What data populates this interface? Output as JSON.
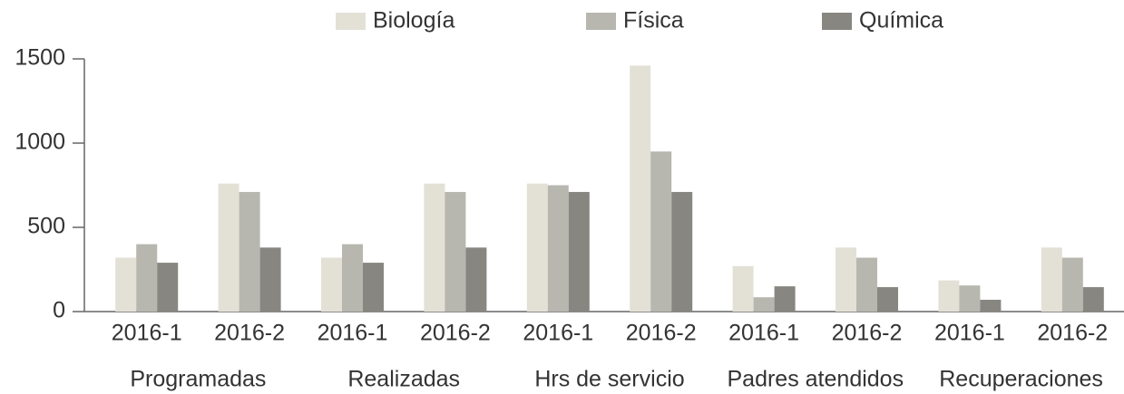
{
  "chart_data": {
    "type": "bar",
    "categories": [
      "2016-1",
      "2016-2",
      "2016-1",
      "2016-2",
      "2016-1",
      "2016-2",
      "2016-1",
      "2016-2",
      "2016-1",
      "2016-2"
    ],
    "groups": [
      "Programadas",
      "Realizadas",
      "Hrs de servicio",
      "Padres atendidos",
      "Recuperaciones"
    ],
    "series": [
      {
        "name": "Biología",
        "color": "#e3e1d6",
        "values": [
          320,
          760,
          320,
          760,
          760,
          1460,
          270,
          380,
          185,
          380
        ]
      },
      {
        "name": "Física",
        "color": "#b7b7b0",
        "values": [
          400,
          710,
          400,
          710,
          750,
          950,
          85,
          320,
          155,
          320
        ]
      },
      {
        "name": "Química",
        "color": "#878681",
        "values": [
          290,
          380,
          290,
          380,
          710,
          710,
          150,
          145,
          70,
          145
        ]
      }
    ],
    "ylim": [
      0,
      1500
    ],
    "yticks": [
      0,
      500,
      1000,
      1500
    ],
    "grid": false,
    "legend": "top"
  }
}
